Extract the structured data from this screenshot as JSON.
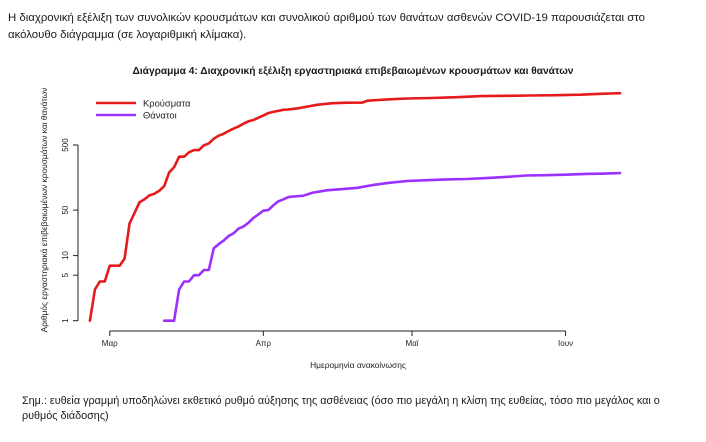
{
  "page": {
    "intro": "Η διαχρονική εξέλιξη των συνολικών κρουσμάτων και συνολικού αριθμού των θανάτων ασθενών COVID-19 παρουσιάζεται στο ακόλουθο διάγραμμα (σε λογαριθμική κλίμακα).",
    "note": "Σημ.: ευθεία γραμμή υποδηλώνει εκθετικό ρυθμό αύξησης της ασθένειας (όσο πιο μεγάλη η κλίση της ευθείας, τόσο πιο μεγάλος και ο ρυθμός διάδοσης)"
  },
  "chart_data": {
    "type": "line",
    "title": "Διάγραμμα 4: Διαχρονική εξέλιξη εργαστηριακά επιβεβαιωμένων κρουσμάτων και θανάτων",
    "xlabel": "Ημερομηνία ανακοίνωσης",
    "ylabel": "Αριθμός εργαστηριακά επιβεβαιωμένων κρουσμάτων και θανάτων",
    "y_scale": "log",
    "ylim": [
      0.8,
      3500
    ],
    "yticks": [
      1,
      5,
      10,
      50,
      500
    ],
    "xlim": [
      "2020-02-24",
      "2020-06-14"
    ],
    "xticks": [
      {
        "date": "2020-03-01",
        "label": "Μαρ"
      },
      {
        "date": "2020-04-01",
        "label": "Απρ"
      },
      {
        "date": "2020-05-01",
        "label": "Μαϊ"
      },
      {
        "date": "2020-06-01",
        "label": "Ιουν"
      }
    ],
    "legend": "top-left",
    "grid": false,
    "series": [
      {
        "name": "Κρούσματα",
        "color": "#e41a1c",
        "points": [
          [
            "2020-02-26",
            1
          ],
          [
            "2020-02-27",
            3
          ],
          [
            "2020-02-28",
            4
          ],
          [
            "2020-02-29",
            4
          ],
          [
            "2020-03-01",
            7
          ],
          [
            "2020-03-02",
            7
          ],
          [
            "2020-03-03",
            7
          ],
          [
            "2020-03-04",
            9
          ],
          [
            "2020-03-05",
            31
          ],
          [
            "2020-03-06",
            45
          ],
          [
            "2020-03-07",
            66
          ],
          [
            "2020-03-08",
            73
          ],
          [
            "2020-03-09",
            84
          ],
          [
            "2020-03-10",
            89
          ],
          [
            "2020-03-11",
            99
          ],
          [
            "2020-03-12",
            117
          ],
          [
            "2020-03-13",
            190
          ],
          [
            "2020-03-14",
            228
          ],
          [
            "2020-03-15",
            331
          ],
          [
            "2020-03-16",
            331
          ],
          [
            "2020-03-17",
            387
          ],
          [
            "2020-03-18",
            418
          ],
          [
            "2020-03-19",
            418
          ],
          [
            "2020-03-20",
            495
          ],
          [
            "2020-03-21",
            530
          ],
          [
            "2020-03-22",
            624
          ],
          [
            "2020-03-23",
            695
          ],
          [
            "2020-03-24",
            743
          ],
          [
            "2020-03-25",
            821
          ],
          [
            "2020-03-26",
            892
          ],
          [
            "2020-03-27",
            966
          ],
          [
            "2020-03-28",
            1061
          ],
          [
            "2020-03-29",
            1156
          ],
          [
            "2020-03-30",
            1212
          ],
          [
            "2020-03-31",
            1314
          ],
          [
            "2020-04-01",
            1415
          ],
          [
            "2020-04-02",
            1544
          ],
          [
            "2020-04-03",
            1613
          ],
          [
            "2020-04-04",
            1673
          ],
          [
            "2020-04-05",
            1735
          ],
          [
            "2020-04-06",
            1755
          ],
          [
            "2020-04-08",
            1832
          ],
          [
            "2020-04-10",
            1955
          ],
          [
            "2020-04-12",
            2081
          ],
          [
            "2020-04-15",
            2192
          ],
          [
            "2020-04-18",
            2235
          ],
          [
            "2020-04-21",
            2245
          ],
          [
            "2020-04-22",
            2401
          ],
          [
            "2020-04-26",
            2506
          ],
          [
            "2020-04-30",
            2591
          ],
          [
            "2020-05-05",
            2642
          ],
          [
            "2020-05-10",
            2710
          ],
          [
            "2020-05-15",
            2819
          ],
          [
            "2020-05-20",
            2853
          ],
          [
            "2020-05-25",
            2882
          ],
          [
            "2020-05-30",
            2915
          ],
          [
            "2020-06-04",
            2967
          ],
          [
            "2020-06-08",
            3058
          ],
          [
            "2020-06-10",
            3089
          ],
          [
            "2020-06-12",
            3121
          ]
        ]
      },
      {
        "name": "Θάνατοι",
        "color": "#9b30ff",
        "points": [
          [
            "2020-03-12",
            1
          ],
          [
            "2020-03-13",
            1
          ],
          [
            "2020-03-14",
            1
          ],
          [
            "2020-03-15",
            3
          ],
          [
            "2020-03-16",
            4
          ],
          [
            "2020-03-17",
            4
          ],
          [
            "2020-03-18",
            5
          ],
          [
            "2020-03-19",
            5
          ],
          [
            "2020-03-20",
            6
          ],
          [
            "2020-03-21",
            6
          ],
          [
            "2020-03-22",
            13
          ],
          [
            "2020-03-23",
            15
          ],
          [
            "2020-03-24",
            17
          ],
          [
            "2020-03-25",
            20
          ],
          [
            "2020-03-26",
            22
          ],
          [
            "2020-03-27",
            26
          ],
          [
            "2020-03-28",
            28
          ],
          [
            "2020-03-29",
            32
          ],
          [
            "2020-03-30",
            38
          ],
          [
            "2020-03-31",
            43
          ],
          [
            "2020-04-01",
            49
          ],
          [
            "2020-04-02",
            50
          ],
          [
            "2020-04-03",
            59
          ],
          [
            "2020-04-04",
            68
          ],
          [
            "2020-04-05",
            73
          ],
          [
            "2020-04-06",
            79
          ],
          [
            "2020-04-07",
            81
          ],
          [
            "2020-04-09",
            83
          ],
          [
            "2020-04-11",
            93
          ],
          [
            "2020-04-14",
            101
          ],
          [
            "2020-04-17",
            105
          ],
          [
            "2020-04-20",
            110
          ],
          [
            "2020-04-23",
            121
          ],
          [
            "2020-04-26",
            130
          ],
          [
            "2020-04-30",
            140
          ],
          [
            "2020-05-04",
            144
          ],
          [
            "2020-05-08",
            148
          ],
          [
            "2020-05-12",
            150
          ],
          [
            "2020-05-16",
            155
          ],
          [
            "2020-05-20",
            162
          ],
          [
            "2020-05-24",
            170
          ],
          [
            "2020-05-28",
            172
          ],
          [
            "2020-06-01",
            175
          ],
          [
            "2020-06-05",
            180
          ],
          [
            "2020-06-09",
            182
          ],
          [
            "2020-06-12",
            185
          ]
        ]
      }
    ]
  }
}
